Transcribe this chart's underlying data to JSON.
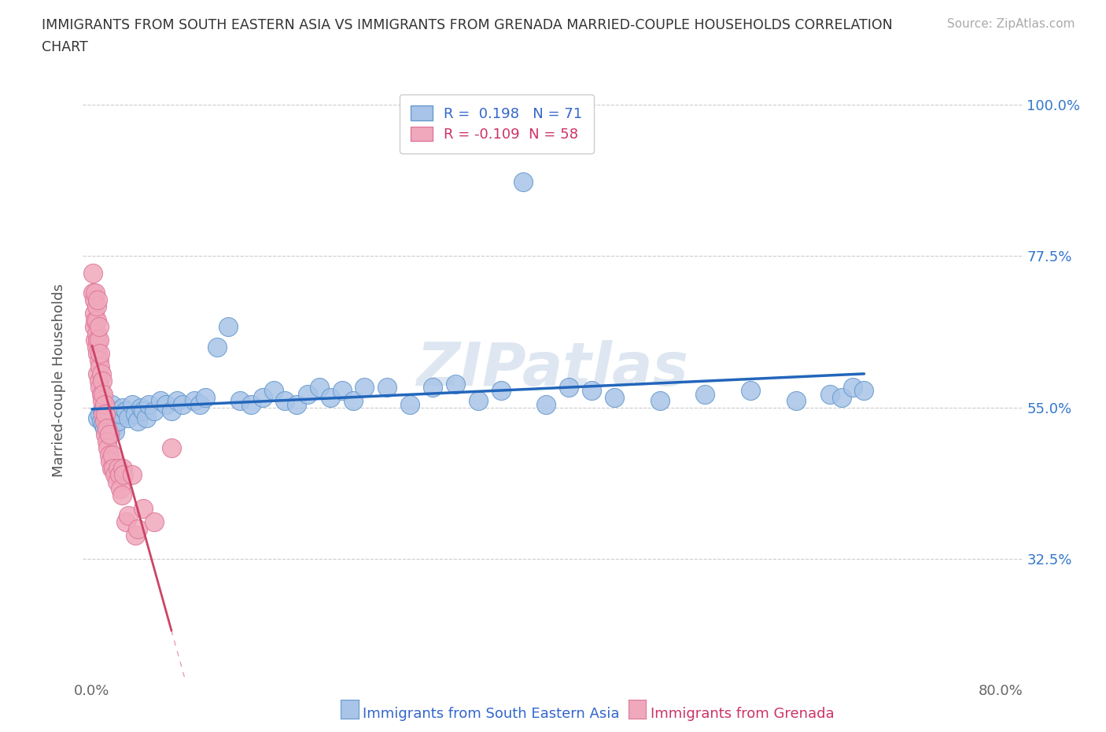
{
  "title_line1": "IMMIGRANTS FROM SOUTH EASTERN ASIA VS IMMIGRANTS FROM GRENADA MARRIED-COUPLE HOUSEHOLDS CORRELATION",
  "title_line2": "CHART",
  "source": "Source: ZipAtlas.com",
  "ylabel": "Married-couple Households",
  "blue_color": "#a8c4e8",
  "blue_edge": "#6699cc",
  "pink_color": "#f0a8bc",
  "pink_edge": "#dd7799",
  "blue_line_color": "#2266bb",
  "pink_line_color": "#cc4466",
  "r_blue": 0.198,
  "n_blue": 71,
  "r_pink": -0.109,
  "n_pink": 58,
  "watermark_text": "ZIPatlas",
  "watermark_color": "#c8d8e8",
  "legend_r_blue": "R =  0.198",
  "legend_n_blue": "N = 71",
  "legend_r_pink": "R = -0.109",
  "legend_n_pink": "N = 58",
  "blue_scatter_x": [
    0.005,
    0.007,
    0.008,
    0.009,
    0.01,
    0.01,
    0.011,
    0.012,
    0.013,
    0.014,
    0.015,
    0.016,
    0.017,
    0.018,
    0.019,
    0.02,
    0.022,
    0.023,
    0.025,
    0.027,
    0.03,
    0.032,
    0.035,
    0.038,
    0.04,
    0.043,
    0.045,
    0.048,
    0.05,
    0.055,
    0.06,
    0.065,
    0.07,
    0.075,
    0.08,
    0.09,
    0.095,
    0.1,
    0.11,
    0.12,
    0.13,
    0.14,
    0.15,
    0.16,
    0.17,
    0.18,
    0.19,
    0.2,
    0.21,
    0.22,
    0.23,
    0.24,
    0.26,
    0.28,
    0.3,
    0.32,
    0.34,
    0.36,
    0.38,
    0.4,
    0.42,
    0.44,
    0.46,
    0.5,
    0.54,
    0.58,
    0.62,
    0.65,
    0.66,
    0.67,
    0.68
  ],
  "blue_scatter_y": [
    0.535,
    0.54,
    0.53,
    0.545,
    0.525,
    0.55,
    0.52,
    0.54,
    0.53,
    0.545,
    0.535,
    0.525,
    0.555,
    0.52,
    0.54,
    0.515,
    0.545,
    0.53,
    0.54,
    0.55,
    0.545,
    0.535,
    0.555,
    0.54,
    0.53,
    0.55,
    0.545,
    0.535,
    0.555,
    0.545,
    0.56,
    0.555,
    0.545,
    0.56,
    0.555,
    0.56,
    0.555,
    0.565,
    0.64,
    0.67,
    0.56,
    0.555,
    0.565,
    0.575,
    0.56,
    0.555,
    0.57,
    0.58,
    0.565,
    0.575,
    0.56,
    0.58,
    0.58,
    0.555,
    0.58,
    0.585,
    0.56,
    0.575,
    0.885,
    0.555,
    0.58,
    0.575,
    0.565,
    0.56,
    0.57,
    0.575,
    0.56,
    0.57,
    0.565,
    0.58,
    0.575
  ],
  "pink_scatter_x": [
    0.001,
    0.001,
    0.002,
    0.002,
    0.002,
    0.003,
    0.003,
    0.003,
    0.004,
    0.004,
    0.004,
    0.004,
    0.005,
    0.005,
    0.005,
    0.005,
    0.006,
    0.006,
    0.006,
    0.006,
    0.007,
    0.007,
    0.007,
    0.008,
    0.008,
    0.009,
    0.009,
    0.01,
    0.01,
    0.011,
    0.011,
    0.012,
    0.012,
    0.013,
    0.013,
    0.014,
    0.015,
    0.015,
    0.016,
    0.017,
    0.018,
    0.019,
    0.02,
    0.022,
    0.023,
    0.024,
    0.025,
    0.026,
    0.027,
    0.028,
    0.03,
    0.032,
    0.035,
    0.038,
    0.04,
    0.045,
    0.055,
    0.07
  ],
  "pink_scatter_y": [
    0.75,
    0.72,
    0.71,
    0.69,
    0.67,
    0.68,
    0.65,
    0.72,
    0.66,
    0.64,
    0.68,
    0.7,
    0.71,
    0.65,
    0.63,
    0.6,
    0.62,
    0.65,
    0.59,
    0.67,
    0.61,
    0.58,
    0.63,
    0.6,
    0.57,
    0.59,
    0.56,
    0.54,
    0.57,
    0.53,
    0.555,
    0.51,
    0.54,
    0.52,
    0.5,
    0.49,
    0.51,
    0.48,
    0.47,
    0.46,
    0.48,
    0.46,
    0.45,
    0.44,
    0.46,
    0.45,
    0.43,
    0.42,
    0.46,
    0.45,
    0.38,
    0.39,
    0.45,
    0.36,
    0.37,
    0.4,
    0.38,
    0.49
  ],
  "dpi": 100
}
